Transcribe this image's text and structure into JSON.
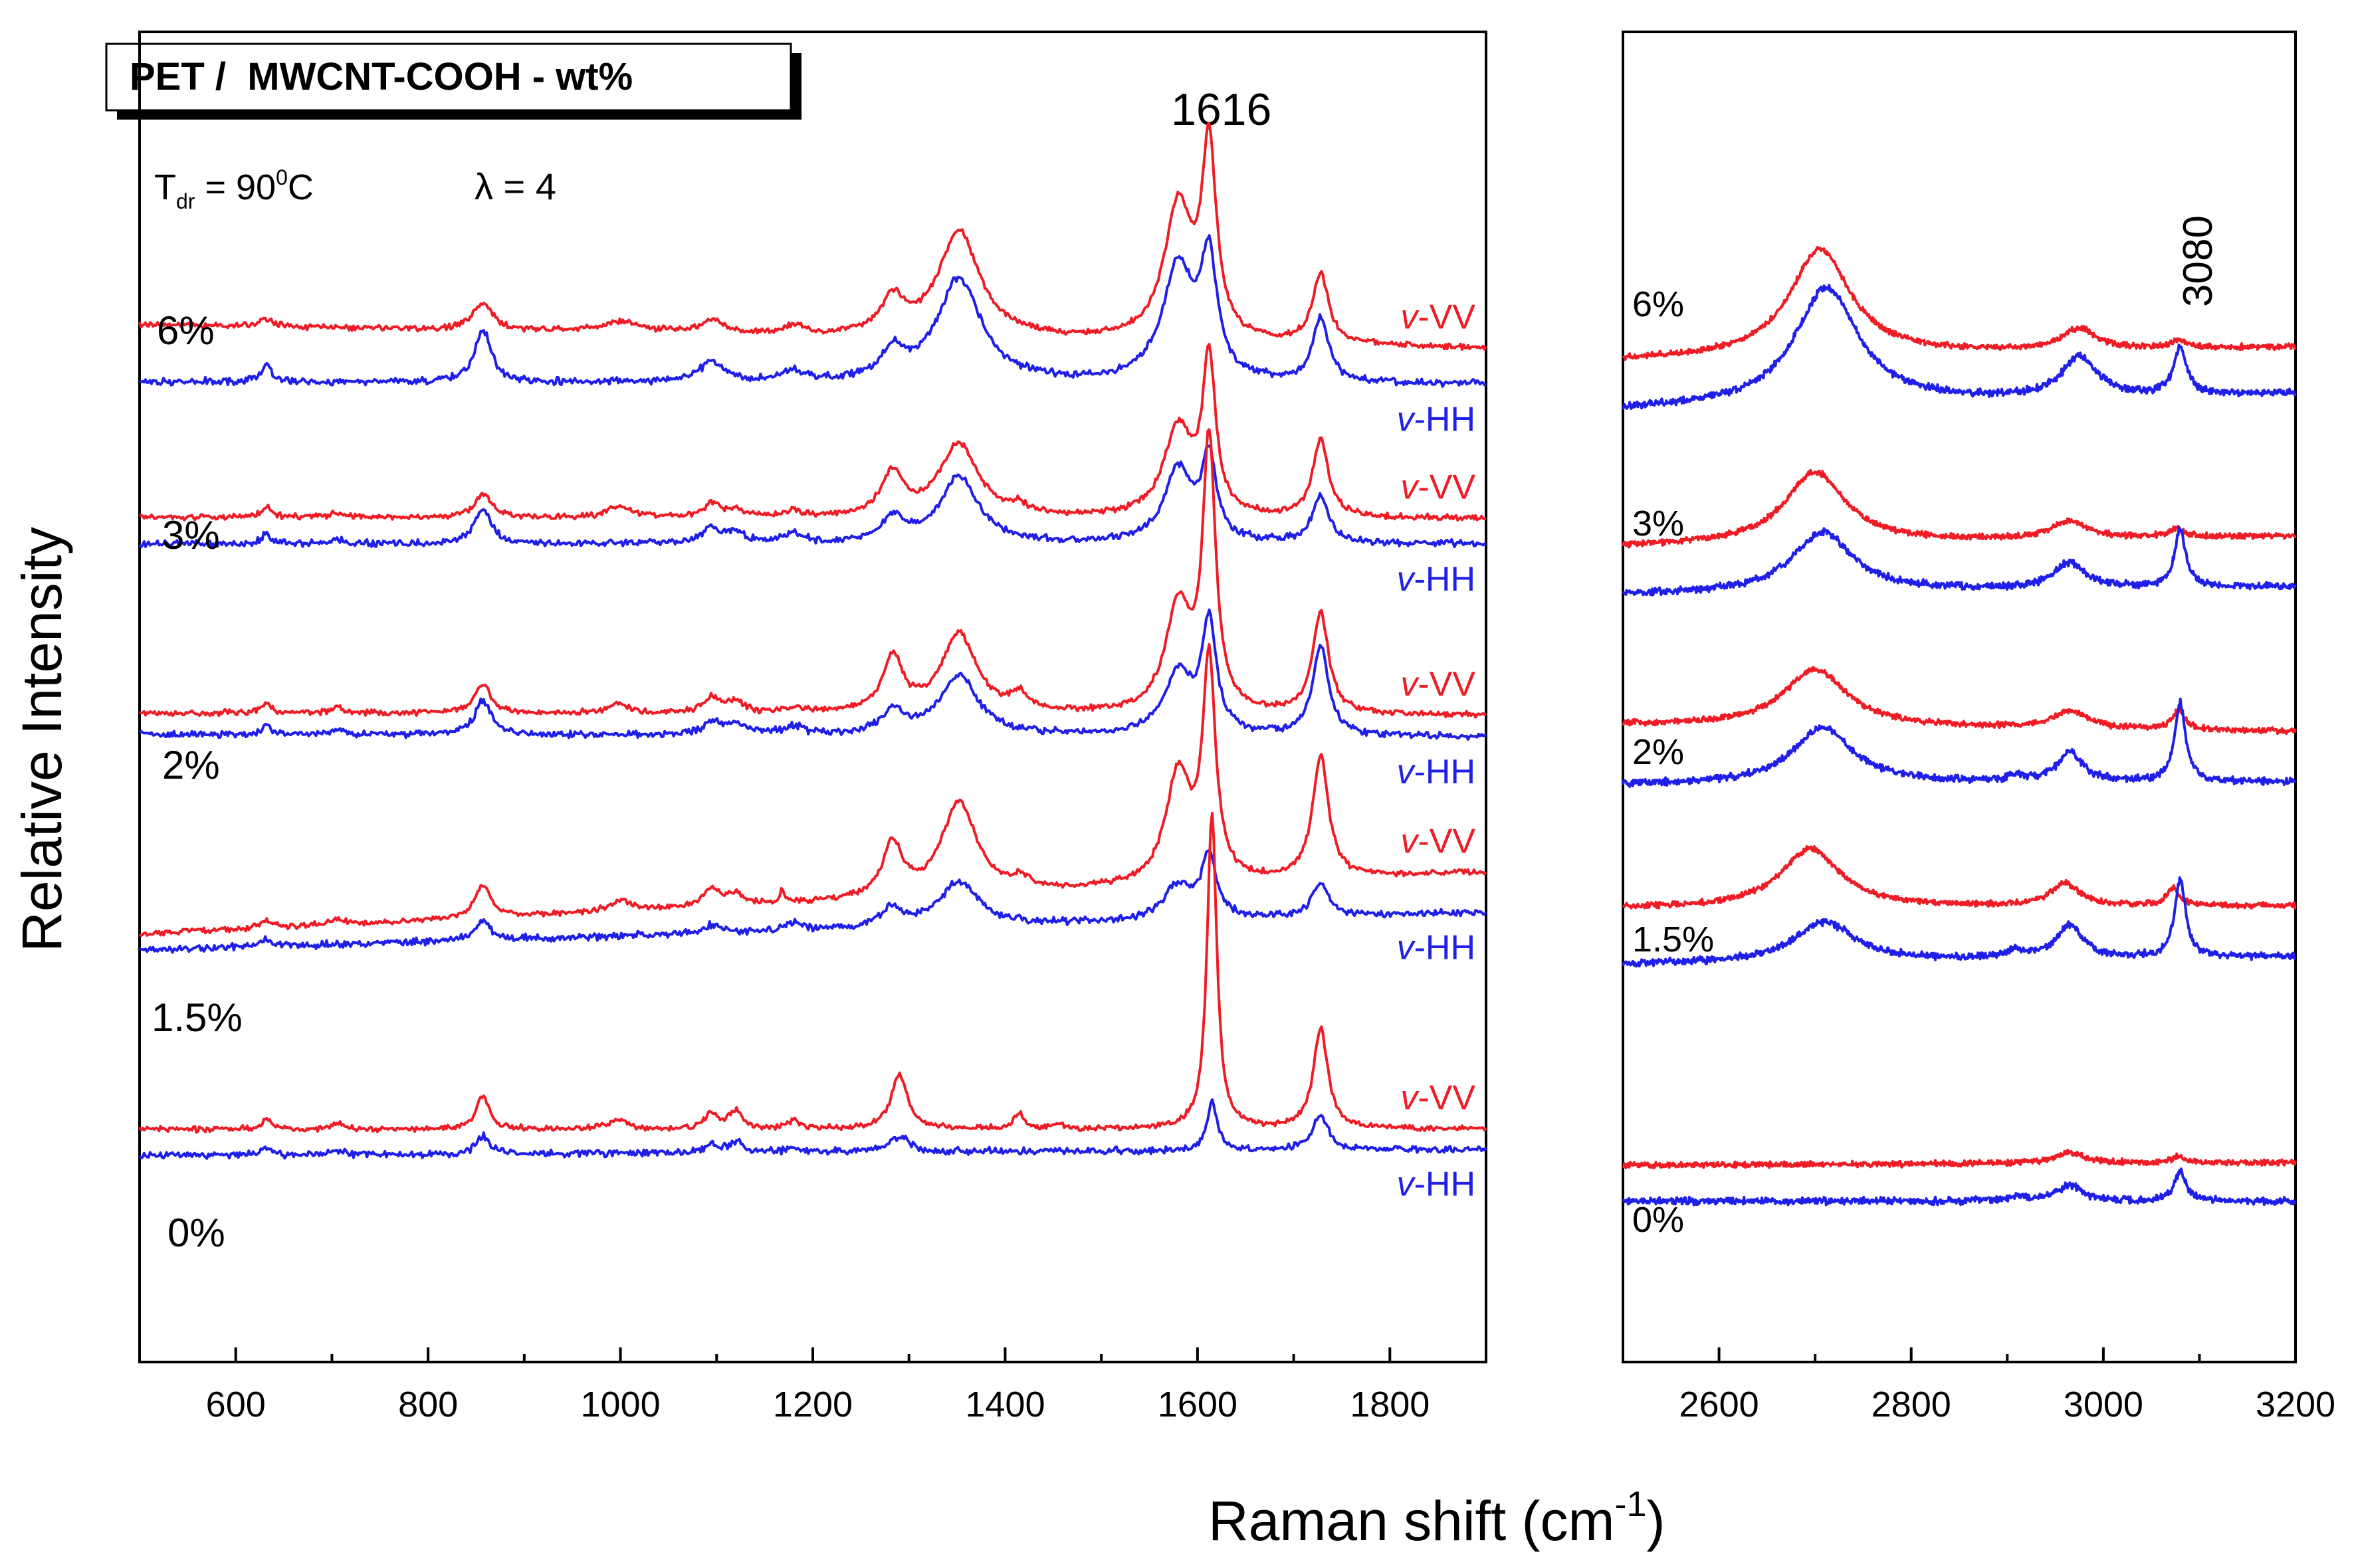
{
  "legend_box": {
    "prefix": "PET /  ",
    "main": "MWCNT-COOH - wt%"
  },
  "conditions": {
    "tdr_T": "T",
    "tdr_sub": "dr",
    "tdr_eq": " = 90",
    "tdr_sup": "0",
    "tdr_unit": "C",
    "lambda": "λ = 4"
  },
  "axes": {
    "ylabel": "Relative Intensity",
    "xlabel_main": "Raman shift (cm",
    "xlabel_sup": "-1",
    "xlabel_end": ")"
  },
  "peak_labels": {
    "left": "1616",
    "right": "3080"
  },
  "colors": {
    "VV": "#ee1c25",
    "HH": "#1f1fe8",
    "axis": "#000000"
  },
  "chart_data": [
    {
      "type": "line",
      "panel": "left",
      "title": "PET /  MWCNT-COOH - wt%",
      "xlabel": "Raman shift (cm-1)",
      "ylabel": "Relative Intensity",
      "xlim": [
        500,
        1900
      ],
      "xticks": [
        600,
        800,
        1000,
        1200,
        1400,
        1600,
        1800
      ],
      "yticks": "none",
      "grid": false,
      "annotations": [
        "1616",
        "T_dr = 90°C",
        "λ = 4"
      ],
      "series": [
        {
          "group": "6%",
          "name": "v-VV",
          "polarization": "VV",
          "baseline_start": 0.78,
          "baseline_end": 0.762,
          "peaks": [
            [
              632,
              0.006,
              8
            ],
            [
              857,
              0.02,
              12
            ],
            [
              1000,
              0.008,
              25
            ],
            [
              1095,
              0.01,
              15
            ],
            [
              1180,
              0.006,
              12
            ],
            [
              1283,
              0.026,
              14
            ],
            [
              1352,
              0.08,
              26
            ],
            [
              1580,
              0.1,
              18
            ],
            [
              1612,
              0.14,
              9
            ],
            [
              1728,
              0.052,
              10
            ]
          ]
        },
        {
          "group": "6%",
          "name": "v-HH",
          "polarization": "HH",
          "baseline_start": 0.737,
          "baseline_end": 0.735,
          "peaks": [
            [
              632,
              0.012,
              6
            ],
            [
              857,
              0.04,
              10
            ],
            [
              1095,
              0.015,
              15
            ],
            [
              1180,
              0.008,
              12
            ],
            [
              1283,
              0.02,
              14
            ],
            [
              1352,
              0.078,
              28
            ],
            [
              1580,
              0.086,
              20
            ],
            [
              1612,
              0.085,
              10
            ],
            [
              1728,
              0.048,
              10
            ]
          ]
        },
        {
          "group": "3%",
          "name": "v-VV",
          "polarization": "VV",
          "baseline_start": 0.635,
          "baseline_end": 0.634,
          "peaks": [
            [
              632,
              0.008,
              6
            ],
            [
              705,
              0.004,
              8
            ],
            [
              857,
              0.018,
              10
            ],
            [
              998,
              0.008,
              15
            ],
            [
              1095,
              0.01,
              10
            ],
            [
              1120,
              0.006,
              10
            ],
            [
              1180,
              0.004,
              10
            ],
            [
              1283,
              0.032,
              14
            ],
            [
              1352,
              0.055,
              24
            ],
            [
              1415,
              0.006,
              10
            ],
            [
              1580,
              0.067,
              18
            ],
            [
              1612,
              0.115,
              8
            ],
            [
              1728,
              0.058,
              10
            ]
          ]
        },
        {
          "group": "3%",
          "name": "v-HH",
          "polarization": "HH",
          "baseline_start": 0.615,
          "baseline_end": 0.615,
          "peaks": [
            [
              632,
              0.008,
              6
            ],
            [
              705,
              0.003,
              8
            ],
            [
              857,
              0.026,
              10
            ],
            [
              1095,
              0.012,
              10
            ],
            [
              1120,
              0.008,
              12
            ],
            [
              1180,
              0.007,
              12
            ],
            [
              1283,
              0.018,
              14
            ],
            [
              1352,
              0.05,
              24
            ],
            [
              1580,
              0.055,
              18
            ],
            [
              1612,
              0.06,
              9
            ],
            [
              1728,
              0.036,
              10
            ]
          ]
        },
        {
          "group": "2%",
          "name": "v-VV",
          "polarization": "VV",
          "baseline_start": 0.488,
          "baseline_end": 0.486,
          "peaks": [
            [
              632,
              0.008,
              6
            ],
            [
              705,
              0.004,
              7
            ],
            [
              857,
              0.022,
              10
            ],
            [
              998,
              0.008,
              12
            ],
            [
              1095,
              0.012,
              10
            ],
            [
              1120,
              0.008,
              10
            ],
            [
              1180,
              0.004,
              10
            ],
            [
              1283,
              0.042,
              12
            ],
            [
              1352,
              0.06,
              22
            ],
            [
              1415,
              0.012,
              10
            ],
            [
              1580,
              0.08,
              16
            ],
            [
              1612,
              0.2,
              8
            ],
            [
              1728,
              0.076,
              10
            ]
          ]
        },
        {
          "group": "2%",
          "name": "v-HH",
          "polarization": "HH",
          "baseline_start": 0.472,
          "baseline_end": 0.47,
          "peaks": [
            [
              632,
              0.007,
              6
            ],
            [
              705,
              0.004,
              7
            ],
            [
              857,
              0.026,
              10
            ],
            [
              1095,
              0.01,
              10
            ],
            [
              1120,
              0.008,
              12
            ],
            [
              1180,
              0.006,
              12
            ],
            [
              1283,
              0.018,
              14
            ],
            [
              1352,
              0.045,
              24
            ],
            [
              1580,
              0.046,
              18
            ],
            [
              1612,
              0.082,
              9
            ],
            [
              1728,
              0.068,
              10
            ]
          ]
        },
        {
          "group": "1.5%",
          "name": "v-VV",
          "polarization": "VV",
          "baseline_start": 0.322,
          "baseline_end": 0.368,
          "peaks": [
            [
              632,
              0.006,
              6
            ],
            [
              705,
              0.004,
              8
            ],
            [
              857,
              0.024,
              10
            ],
            [
              1000,
              0.008,
              14
            ],
            [
              1095,
              0.014,
              10
            ],
            [
              1120,
              0.008,
              10
            ],
            [
              1168,
              0.012,
              2
            ],
            [
              1283,
              0.04,
              12
            ],
            [
              1352,
              0.07,
              22
            ],
            [
              1415,
              0.008,
              10
            ],
            [
              1580,
              0.082,
              16
            ],
            [
              1612,
              0.162,
              8
            ],
            [
              1728,
              0.092,
              10
            ]
          ]
        },
        {
          "group": "1.5%",
          "name": "v-HH",
          "polarization": "HH",
          "baseline_start": 0.31,
          "baseline_end": 0.338,
          "peaks": [
            [
              632,
              0.005,
              6
            ],
            [
              857,
              0.014,
              10
            ],
            [
              1095,
              0.006,
              10
            ],
            [
              1180,
              0.006,
              12
            ],
            [
              1283,
              0.014,
              14
            ],
            [
              1352,
              0.034,
              24
            ],
            [
              1580,
              0.026,
              18
            ],
            [
              1612,
              0.046,
              9
            ],
            [
              1728,
              0.026,
              10
            ]
          ]
        },
        {
          "group": "0%",
          "name": "v-VV",
          "polarization": "VV",
          "baseline_start": 0.175,
          "baseline_end": 0.175,
          "peaks": [
            [
              632,
              0.008,
              5
            ],
            [
              705,
              0.005,
              6
            ],
            [
              857,
              0.025,
              8
            ],
            [
              998,
              0.008,
              10
            ],
            [
              1095,
              0.012,
              8
            ],
            [
              1120,
              0.014,
              8
            ],
            [
              1180,
              0.006,
              8
            ],
            [
              1290,
              0.042,
              10
            ],
            [
              1415,
              0.012,
              6
            ],
            [
              1455,
              0.004,
              8
            ],
            [
              1615,
              0.239,
              6
            ],
            [
              1728,
              0.076,
              9
            ]
          ]
        },
        {
          "group": "0%",
          "name": "v-HH",
          "polarization": "HH",
          "baseline_start": 0.155,
          "baseline_end": 0.16,
          "peaks": [
            [
              632,
              0.006,
              5
            ],
            [
              705,
              0.004,
              6
            ],
            [
              857,
              0.014,
              8
            ],
            [
              1095,
              0.006,
              8
            ],
            [
              1120,
              0.008,
              10
            ],
            [
              1180,
              0.004,
              8
            ],
            [
              1290,
              0.012,
              12
            ],
            [
              1615,
              0.038,
              6
            ],
            [
              1728,
              0.028,
              9
            ]
          ]
        }
      ],
      "group_labels": [
        "6%",
        "3%",
        "2%",
        "1.5%",
        "0%"
      ],
      "series_labels": [
        "v-VV",
        "v-HH"
      ]
    },
    {
      "type": "line",
      "panel": "right",
      "xlabel": "Raman shift (cm-1)",
      "xlim": [
        2500,
        3200
      ],
      "xticks": [
        2600,
        2800,
        3000,
        3200
      ],
      "yticks": "none",
      "grid": false,
      "annotations": [
        "3080"
      ],
      "series": [
        {
          "group": "6%",
          "polarization": "VV",
          "baseline_start": 0.753,
          "baseline_end": 0.763,
          "peaks": [
            [
              2705,
              0.081,
              38
            ],
            [
              2975,
              0.016,
              22
            ],
            [
              3080,
              0.006,
              10
            ]
          ]
        },
        {
          "group": "6%",
          "polarization": "HH",
          "baseline_start": 0.716,
          "baseline_end": 0.728,
          "peaks": [
            [
              2712,
              0.088,
              40
            ],
            [
              2975,
              0.03,
              22
            ],
            [
              3080,
              0.035,
              8
            ]
          ]
        },
        {
          "group": "3%",
          "polarization": "VV",
          "baseline_start": 0.613,
          "baseline_end": 0.621,
          "peaks": [
            [
              2700,
              0.054,
              38
            ],
            [
              2965,
              0.013,
              22
            ],
            [
              3075,
              0.006,
              10
            ]
          ]
        },
        {
          "group": "3%",
          "polarization": "HH",
          "baseline_start": 0.577,
          "baseline_end": 0.583,
          "peaks": [
            [
              2708,
              0.045,
              38
            ],
            [
              2965,
              0.019,
              20
            ],
            [
              3080,
              0.043,
              7
            ]
          ]
        },
        {
          "group": "2%",
          "polarization": "VV",
          "baseline_start": 0.479,
          "baseline_end": 0.474,
          "peaks": [
            [
              2700,
              0.043,
              40
            ],
            [
              2965,
              0.013,
              22
            ],
            [
              3078,
              0.014,
              8
            ]
          ]
        },
        {
          "group": "2%",
          "polarization": "HH",
          "baseline_start": 0.434,
          "baseline_end": 0.436,
          "peaks": [
            [
              2708,
              0.042,
              38
            ],
            [
              2910,
              0.004,
              10
            ],
            [
              2965,
              0.022,
              16
            ],
            [
              3080,
              0.059,
              7
            ]
          ]
        },
        {
          "group": "1.5%",
          "polarization": "VV",
          "baseline_start": 0.341,
          "baseline_end": 0.343,
          "peaks": [
            [
              2695,
              0.044,
              38
            ],
            [
              2960,
              0.017,
              18
            ],
            [
              3072,
              0.013,
              8
            ]
          ]
        },
        {
          "group": "1.5%",
          "polarization": "HH",
          "baseline_start": 0.299,
          "baseline_end": 0.305,
          "peaks": [
            [
              2710,
              0.03,
              38
            ],
            [
              2910,
              0.006,
              12
            ],
            [
              2965,
              0.025,
              16
            ],
            [
              3080,
              0.058,
              7
            ]
          ]
        },
        {
          "group": "0%",
          "polarization": "VV",
          "baseline_start": 0.148,
          "baseline_end": 0.15,
          "peaks": [
            [
              2965,
              0.008,
              20
            ],
            [
              3078,
              0.005,
              8
            ]
          ]
        },
        {
          "group": "0%",
          "polarization": "HH",
          "baseline_start": 0.121,
          "baseline_end": 0.121,
          "peaks": [
            [
              2910,
              0.004,
              10
            ],
            [
              2965,
              0.012,
              16
            ],
            [
              3080,
              0.022,
              7
            ]
          ]
        }
      ],
      "group_labels": [
        "6%",
        "3%",
        "2%",
        "1.5%",
        "0%"
      ]
    }
  ]
}
